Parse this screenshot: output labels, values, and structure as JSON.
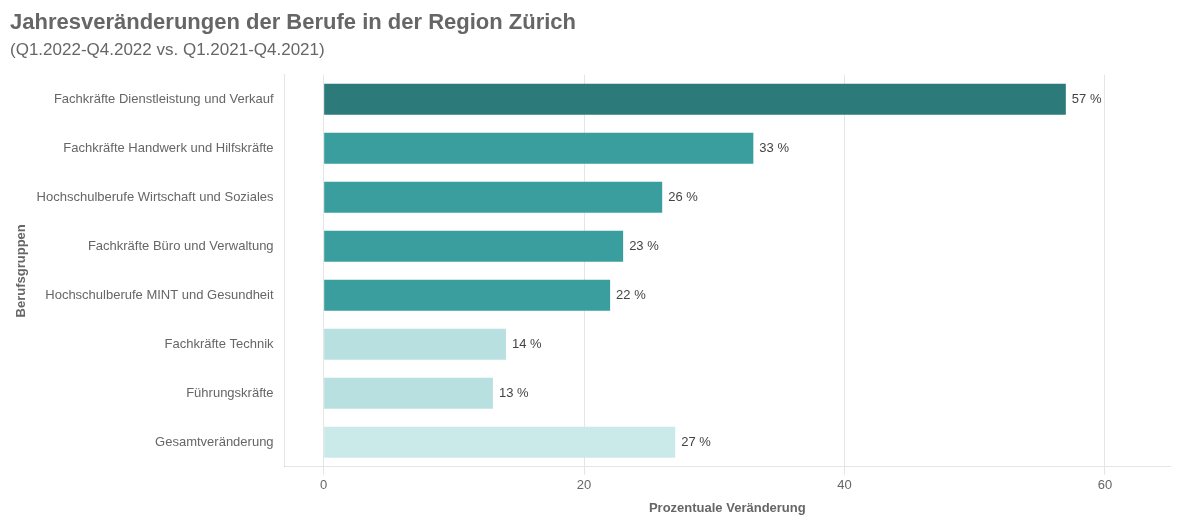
{
  "chart_data": {
    "type": "bar",
    "orientation": "horizontal",
    "title": "Jahresveränderungen der Berufe in der Region Zürich",
    "subtitle": "(Q1.2022-Q4.2022 vs. Q1.2021-Q4.2021)",
    "xlabel": "Prozentuale Veränderung",
    "ylabel": "Berufsgruppen",
    "categories": [
      "Fachkräfte Dienstleistung und Verkauf",
      "Fachkräfte Handwerk und Hilfskräfte",
      "Hochschulberufe Wirtschaft und Soziales",
      "Fachkräfte Büro und Verwaltung",
      "Hochschulberufe MINT und Gesundheit",
      "Fachkräfte Technik",
      "Führungskräfte",
      "Gesamtveränderung"
    ],
    "values": [
      57,
      33,
      26,
      23,
      22,
      14,
      13,
      27
    ],
    "value_labels": [
      "57 %",
      "33 %",
      "26 %",
      "23 %",
      "22 %",
      "14 %",
      "13 %",
      "27 %"
    ],
    "colors": [
      "#2d7a7a",
      "#3a9e9e",
      "#3a9e9e",
      "#3a9e9e",
      "#3a9e9e",
      "#b8e0e0",
      "#b8e0e0",
      "#caeaea"
    ],
    "xlim": [
      -3,
      65
    ],
    "xticks": [
      0,
      20,
      40,
      60
    ],
    "grid": true,
    "data_labels": true
  }
}
